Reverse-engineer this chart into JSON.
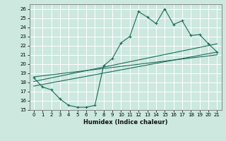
{
  "xlabel": "Humidex (Indice chaleur)",
  "bg_color": "#cce8df",
  "grid_color": "#b0d4cc",
  "line_color": "#1a6b5a",
  "xlim": [
    -0.5,
    21.5
  ],
  "ylim": [
    15,
    26.5
  ],
  "x_ticks": [
    0,
    1,
    2,
    3,
    4,
    5,
    6,
    7,
    8,
    9,
    10,
    11,
    12,
    13,
    14,
    15,
    16,
    17,
    18,
    19,
    20,
    21
  ],
  "y_ticks": [
    15,
    16,
    17,
    18,
    19,
    20,
    21,
    22,
    23,
    24,
    25,
    26
  ],
  "main_x": [
    0,
    1,
    2,
    3,
    4,
    5,
    6,
    7,
    8,
    9,
    10,
    11,
    12,
    13,
    14,
    15,
    16,
    17,
    18,
    19,
    20,
    21
  ],
  "main_y": [
    18.5,
    17.5,
    17.2,
    16.2,
    15.5,
    15.3,
    15.3,
    15.5,
    19.8,
    20.6,
    22.3,
    23.0,
    25.7,
    25.1,
    24.4,
    26.0,
    24.3,
    24.7,
    23.1,
    23.2,
    22.2,
    21.3
  ],
  "line1_x": [
    0,
    21
  ],
  "line1_y": [
    18.1,
    22.2
  ],
  "line2_x": [
    0,
    21
  ],
  "line2_y": [
    17.6,
    21.3
  ],
  "line3_x": [
    0,
    21
  ],
  "line3_y": [
    18.6,
    21.0
  ]
}
